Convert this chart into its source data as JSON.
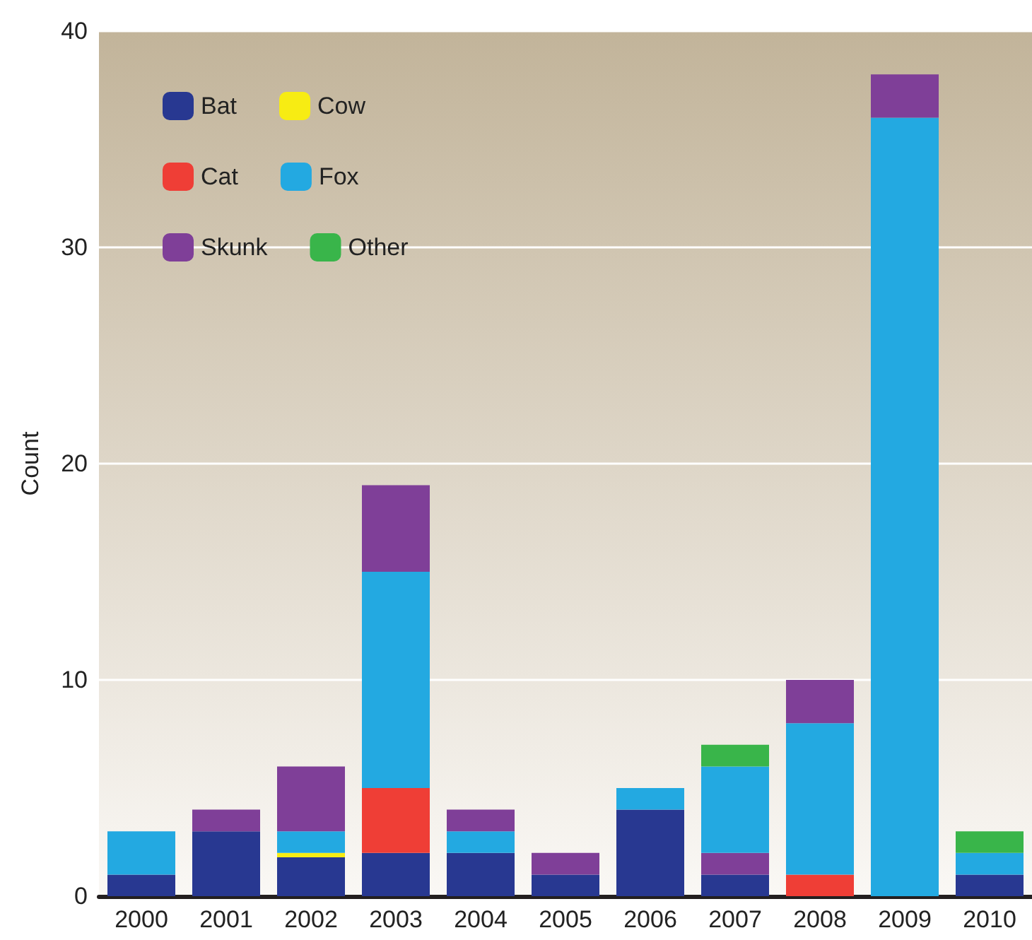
{
  "chart_data": {
    "type": "bar",
    "stacked": true,
    "ylabel": "Count",
    "categories": [
      "2000",
      "2001",
      "2002",
      "2003",
      "2004",
      "2005",
      "2006",
      "2007",
      "2008",
      "2009",
      "2010"
    ],
    "series": [
      {
        "name": "Bat",
        "color": "#283891",
        "values": [
          1,
          3,
          1.8,
          2,
          2,
          1,
          4,
          1,
          0,
          0,
          1
        ]
      },
      {
        "name": "Cow",
        "color": "#f7ec13",
        "values": [
          0,
          0,
          0.2,
          0,
          0,
          0,
          0,
          0,
          0,
          0,
          0
        ]
      },
      {
        "name": "Cat",
        "color": "#ef3e36",
        "values": [
          0,
          0,
          0,
          3,
          0,
          0,
          0,
          0,
          1,
          0,
          0
        ]
      },
      {
        "color": "#7f3f98",
        "values": [
          0,
          0,
          0,
          0,
          0,
          0,
          0,
          1,
          0,
          0,
          0
        ]
      },
      {
        "name": "Fox",
        "color": "#23a9e1",
        "values": [
          2,
          0,
          1,
          10,
          1,
          0,
          1,
          4,
          7,
          36,
          1
        ]
      },
      {
        "name": "Skunk",
        "color": "#7f3f98",
        "values": [
          0,
          1,
          3,
          4,
          1,
          1,
          0,
          0,
          2,
          2,
          0
        ]
      },
      {
        "name": "Other",
        "color": "#39b54a",
        "values": [
          0,
          0,
          0,
          0,
          0,
          0,
          0,
          1,
          0,
          0,
          1
        ]
      }
    ],
    "ylim": [
      0,
      40
    ],
    "yticks": [
      0,
      10,
      20,
      30,
      40
    ],
    "grid": "y",
    "legend": "top left"
  }
}
